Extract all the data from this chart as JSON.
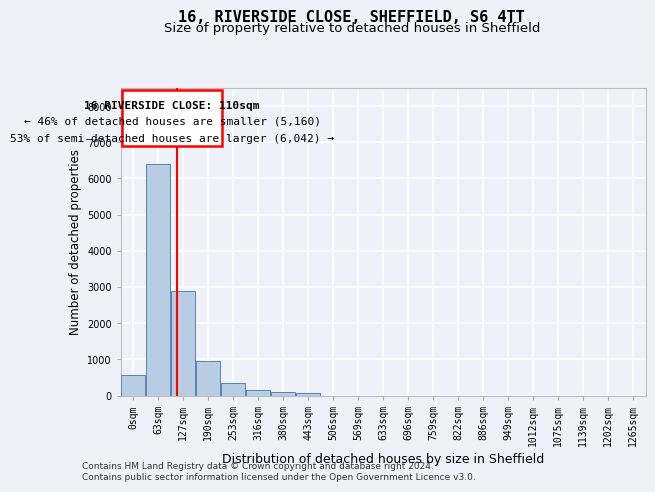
{
  "title_line1": "16, RIVERSIDE CLOSE, SHEFFIELD, S6 4TT",
  "title_line2": "Size of property relative to detached houses in Sheffield",
  "xlabel": "Distribution of detached houses by size in Sheffield",
  "ylabel": "Number of detached properties",
  "bar_labels": [
    "0sqm",
    "63sqm",
    "127sqm",
    "190sqm",
    "253sqm",
    "316sqm",
    "380sqm",
    "443sqm",
    "506sqm",
    "569sqm",
    "633sqm",
    "696sqm",
    "759sqm",
    "822sqm",
    "886sqm",
    "949sqm",
    "1012sqm",
    "1075sqm",
    "1139sqm",
    "1202sqm",
    "1265sqm"
  ],
  "bar_values": [
    580,
    6400,
    2900,
    960,
    350,
    160,
    95,
    60,
    0,
    0,
    0,
    0,
    0,
    0,
    0,
    0,
    0,
    0,
    0,
    0,
    0
  ],
  "bar_color": "#b8cce4",
  "bar_edgecolor": "#5585b5",
  "ylim": [
    0,
    8500
  ],
  "yticks": [
    0,
    1000,
    2000,
    3000,
    4000,
    5000,
    6000,
    7000,
    8000
  ],
  "property_line_x": 1.73,
  "annotation_line1": "16 RIVERSIDE CLOSE: 110sqm",
  "annotation_line2": "← 46% of detached houses are smaller (5,160)",
  "annotation_line3": "53% of semi-detached houses are larger (6,042) →",
  "footer_line1": "Contains HM Land Registry data © Crown copyright and database right 2024.",
  "footer_line2": "Contains public sector information licensed under the Open Government Licence v3.0.",
  "background_color": "#eef2f8",
  "plot_background": "#eef2f8",
  "grid_color": "#ffffff",
  "annotation_fontsize": 8,
  "title1_fontsize": 11,
  "title2_fontsize": 9.5,
  "xlabel_fontsize": 9,
  "ylabel_fontsize": 8.5,
  "tick_fontsize": 7,
  "footer_fontsize": 6.5
}
